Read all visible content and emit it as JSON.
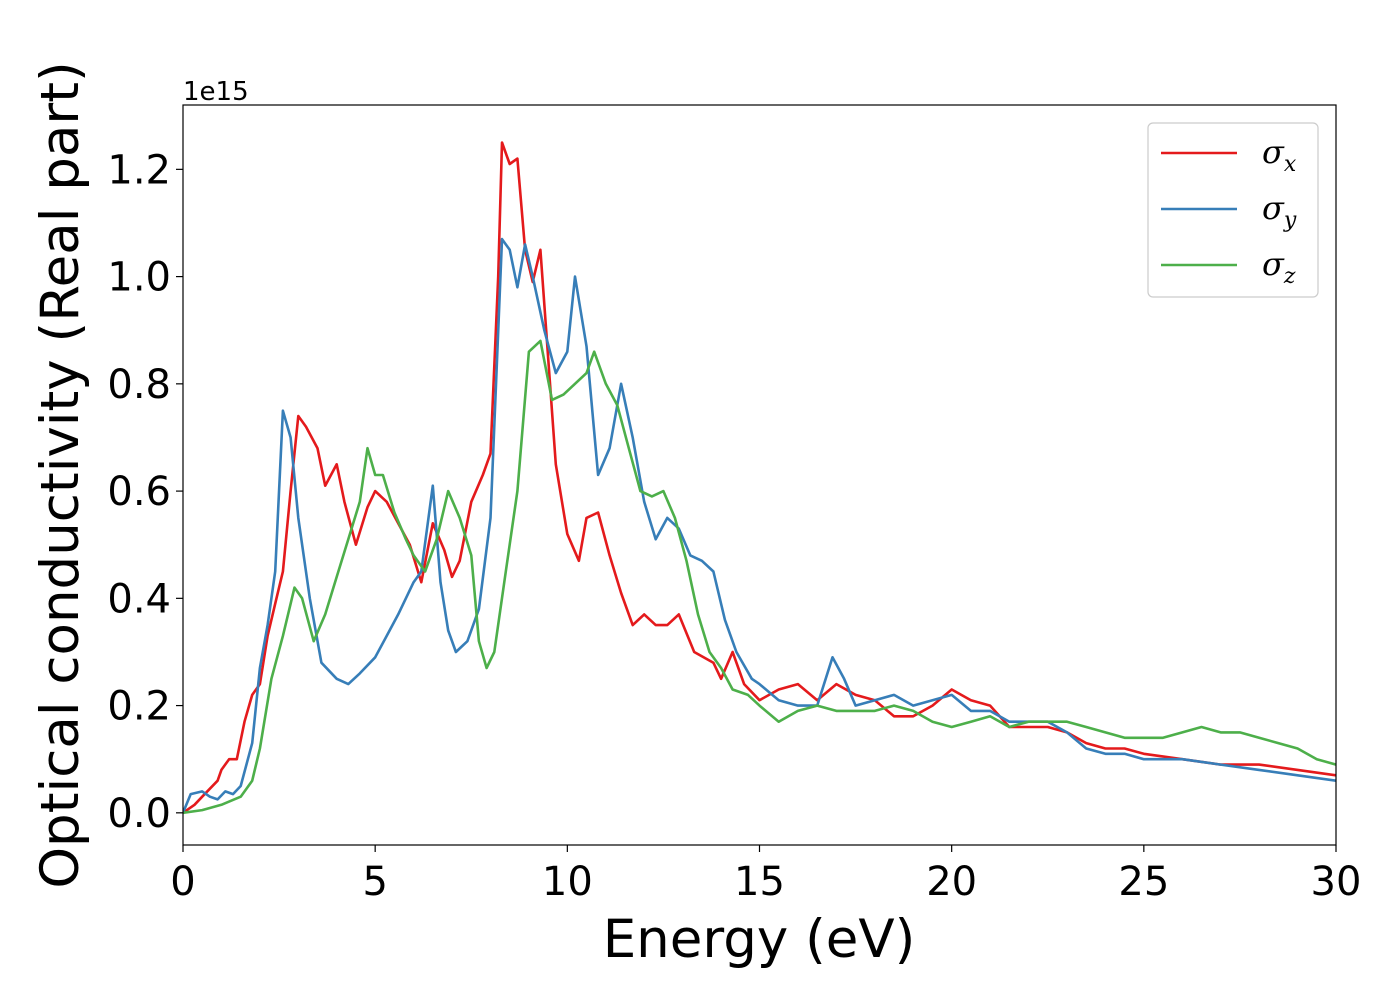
{
  "chart_data": {
    "type": "line",
    "xlabel": "Energy (eV)",
    "ylabel": "Optical conductivity (Real part)",
    "y_offset_label": "1e15",
    "xlim": [
      0,
      30
    ],
    "ylim": [
      -0.06,
      1.32
    ],
    "x_ticks": [
      0,
      5,
      10,
      15,
      20,
      25,
      30
    ],
    "x_tick_labels": [
      "0",
      "5",
      "10",
      "15",
      "20",
      "25",
      "30"
    ],
    "y_ticks": [
      0.0,
      0.2,
      0.4,
      0.6,
      0.8,
      1.0,
      1.2
    ],
    "y_tick_labels": [
      "0.0",
      "0.2",
      "0.4",
      "0.6",
      "0.8",
      "1.0",
      "1.2"
    ],
    "grid": false,
    "legend_position": "top-right",
    "series": [
      {
        "name": "σx",
        "legend_symbol": "σ",
        "legend_subscript": "x",
        "color": "#e41a1c",
        "points": [
          [
            0,
            0.0
          ],
          [
            0.3,
            0.015
          ],
          [
            0.5,
            0.03
          ],
          [
            0.7,
            0.045
          ],
          [
            0.9,
            0.06
          ],
          [
            1.0,
            0.08
          ],
          [
            1.2,
            0.1
          ],
          [
            1.4,
            0.1
          ],
          [
            1.6,
            0.17
          ],
          [
            1.8,
            0.22
          ],
          [
            2.0,
            0.24
          ],
          [
            2.2,
            0.33
          ],
          [
            2.4,
            0.39
          ],
          [
            2.6,
            0.45
          ],
          [
            2.8,
            0.6
          ],
          [
            3.0,
            0.74
          ],
          [
            3.2,
            0.72
          ],
          [
            3.5,
            0.68
          ],
          [
            3.7,
            0.61
          ],
          [
            4.0,
            0.65
          ],
          [
            4.2,
            0.58
          ],
          [
            4.5,
            0.5
          ],
          [
            4.8,
            0.57
          ],
          [
            5.0,
            0.6
          ],
          [
            5.3,
            0.58
          ],
          [
            5.6,
            0.54
          ],
          [
            5.9,
            0.5
          ],
          [
            6.2,
            0.43
          ],
          [
            6.5,
            0.54
          ],
          [
            6.8,
            0.49
          ],
          [
            7.0,
            0.44
          ],
          [
            7.2,
            0.47
          ],
          [
            7.5,
            0.58
          ],
          [
            7.8,
            0.63
          ],
          [
            8.0,
            0.67
          ],
          [
            8.2,
            1.0
          ],
          [
            8.3,
            1.25
          ],
          [
            8.5,
            1.21
          ],
          [
            8.7,
            1.22
          ],
          [
            8.9,
            1.05
          ],
          [
            9.1,
            0.99
          ],
          [
            9.3,
            1.05
          ],
          [
            9.5,
            0.85
          ],
          [
            9.7,
            0.65
          ],
          [
            10.0,
            0.52
          ],
          [
            10.3,
            0.47
          ],
          [
            10.5,
            0.55
          ],
          [
            10.8,
            0.56
          ],
          [
            11.1,
            0.48
          ],
          [
            11.4,
            0.41
          ],
          [
            11.7,
            0.35
          ],
          [
            12.0,
            0.37
          ],
          [
            12.3,
            0.35
          ],
          [
            12.6,
            0.35
          ],
          [
            12.9,
            0.37
          ],
          [
            13.3,
            0.3
          ],
          [
            13.8,
            0.28
          ],
          [
            14.0,
            0.25
          ],
          [
            14.3,
            0.3
          ],
          [
            14.6,
            0.24
          ],
          [
            15.0,
            0.21
          ],
          [
            15.5,
            0.23
          ],
          [
            16.0,
            0.24
          ],
          [
            16.5,
            0.21
          ],
          [
            17.0,
            0.24
          ],
          [
            17.5,
            0.22
          ],
          [
            18.0,
            0.21
          ],
          [
            18.5,
            0.18
          ],
          [
            19.0,
            0.18
          ],
          [
            19.5,
            0.2
          ],
          [
            20.0,
            0.23
          ],
          [
            20.5,
            0.21
          ],
          [
            21.0,
            0.2
          ],
          [
            21.5,
            0.16
          ],
          [
            22.0,
            0.16
          ],
          [
            22.5,
            0.16
          ],
          [
            23.0,
            0.15
          ],
          [
            23.5,
            0.13
          ],
          [
            24.0,
            0.12
          ],
          [
            24.5,
            0.12
          ],
          [
            25.0,
            0.11
          ],
          [
            26.0,
            0.1
          ],
          [
            27.0,
            0.09
          ],
          [
            28.0,
            0.09
          ],
          [
            29.0,
            0.08
          ],
          [
            30.0,
            0.07
          ]
        ]
      },
      {
        "name": "σy",
        "legend_symbol": "σ",
        "legend_subscript": "y",
        "color": "#377eb8",
        "points": [
          [
            0,
            0.0
          ],
          [
            0.2,
            0.035
          ],
          [
            0.5,
            0.04
          ],
          [
            0.7,
            0.03
          ],
          [
            0.9,
            0.025
          ],
          [
            1.1,
            0.04
          ],
          [
            1.3,
            0.035
          ],
          [
            1.5,
            0.05
          ],
          [
            1.8,
            0.13
          ],
          [
            2.0,
            0.27
          ],
          [
            2.2,
            0.35
          ],
          [
            2.4,
            0.45
          ],
          [
            2.6,
            0.75
          ],
          [
            2.8,
            0.7
          ],
          [
            3.0,
            0.55
          ],
          [
            3.3,
            0.4
          ],
          [
            3.6,
            0.28
          ],
          [
            4.0,
            0.25
          ],
          [
            4.3,
            0.24
          ],
          [
            4.6,
            0.26
          ],
          [
            5.0,
            0.29
          ],
          [
            5.3,
            0.33
          ],
          [
            5.6,
            0.37
          ],
          [
            6.0,
            0.43
          ],
          [
            6.2,
            0.45
          ],
          [
            6.5,
            0.61
          ],
          [
            6.7,
            0.43
          ],
          [
            6.9,
            0.34
          ],
          [
            7.1,
            0.3
          ],
          [
            7.4,
            0.32
          ],
          [
            7.7,
            0.38
          ],
          [
            8.0,
            0.55
          ],
          [
            8.3,
            1.07
          ],
          [
            8.5,
            1.05
          ],
          [
            8.7,
            0.98
          ],
          [
            8.9,
            1.06
          ],
          [
            9.1,
            1.0
          ],
          [
            9.4,
            0.9
          ],
          [
            9.7,
            0.82
          ],
          [
            10.0,
            0.86
          ],
          [
            10.2,
            1.0
          ],
          [
            10.5,
            0.87
          ],
          [
            10.8,
            0.63
          ],
          [
            11.1,
            0.68
          ],
          [
            11.4,
            0.8
          ],
          [
            11.7,
            0.7
          ],
          [
            12.0,
            0.58
          ],
          [
            12.3,
            0.51
          ],
          [
            12.6,
            0.55
          ],
          [
            12.9,
            0.53
          ],
          [
            13.2,
            0.48
          ],
          [
            13.5,
            0.47
          ],
          [
            13.8,
            0.45
          ],
          [
            14.1,
            0.36
          ],
          [
            14.4,
            0.3
          ],
          [
            14.8,
            0.25
          ],
          [
            15.0,
            0.24
          ],
          [
            15.5,
            0.21
          ],
          [
            16.0,
            0.2
          ],
          [
            16.5,
            0.2
          ],
          [
            16.9,
            0.29
          ],
          [
            17.2,
            0.25
          ],
          [
            17.5,
            0.2
          ],
          [
            18.0,
            0.21
          ],
          [
            18.5,
            0.22
          ],
          [
            19.0,
            0.2
          ],
          [
            19.5,
            0.21
          ],
          [
            20.0,
            0.22
          ],
          [
            20.5,
            0.19
          ],
          [
            21.0,
            0.19
          ],
          [
            21.5,
            0.17
          ],
          [
            22.0,
            0.17
          ],
          [
            22.5,
            0.17
          ],
          [
            23.0,
            0.15
          ],
          [
            23.5,
            0.12
          ],
          [
            24.0,
            0.11
          ],
          [
            24.5,
            0.11
          ],
          [
            25.0,
            0.1
          ],
          [
            26.0,
            0.1
          ],
          [
            27.0,
            0.09
          ],
          [
            28.0,
            0.08
          ],
          [
            29.0,
            0.07
          ],
          [
            30.0,
            0.06
          ]
        ]
      },
      {
        "name": "σz",
        "legend_symbol": "σ",
        "legend_subscript": "z",
        "color": "#4daf4a",
        "points": [
          [
            0,
            0.0
          ],
          [
            0.5,
            0.005
          ],
          [
            1.0,
            0.015
          ],
          [
            1.5,
            0.03
          ],
          [
            1.8,
            0.06
          ],
          [
            2.0,
            0.12
          ],
          [
            2.3,
            0.25
          ],
          [
            2.6,
            0.33
          ],
          [
            2.9,
            0.42
          ],
          [
            3.1,
            0.4
          ],
          [
            3.4,
            0.32
          ],
          [
            3.7,
            0.37
          ],
          [
            4.0,
            0.44
          ],
          [
            4.3,
            0.51
          ],
          [
            4.6,
            0.58
          ],
          [
            4.8,
            0.68
          ],
          [
            5.0,
            0.63
          ],
          [
            5.2,
            0.63
          ],
          [
            5.5,
            0.56
          ],
          [
            5.8,
            0.51
          ],
          [
            6.0,
            0.48
          ],
          [
            6.3,
            0.45
          ],
          [
            6.6,
            0.51
          ],
          [
            6.9,
            0.6
          ],
          [
            7.2,
            0.55
          ],
          [
            7.5,
            0.48
          ],
          [
            7.7,
            0.32
          ],
          [
            7.9,
            0.27
          ],
          [
            8.1,
            0.3
          ],
          [
            8.4,
            0.45
          ],
          [
            8.7,
            0.6
          ],
          [
            9.0,
            0.86
          ],
          [
            9.3,
            0.88
          ],
          [
            9.6,
            0.77
          ],
          [
            9.9,
            0.78
          ],
          [
            10.2,
            0.8
          ],
          [
            10.5,
            0.82
          ],
          [
            10.7,
            0.86
          ],
          [
            11.0,
            0.8
          ],
          [
            11.3,
            0.76
          ],
          [
            11.6,
            0.68
          ],
          [
            11.9,
            0.6
          ],
          [
            12.2,
            0.59
          ],
          [
            12.5,
            0.6
          ],
          [
            12.8,
            0.55
          ],
          [
            13.1,
            0.47
          ],
          [
            13.4,
            0.37
          ],
          [
            13.7,
            0.3
          ],
          [
            14.0,
            0.27
          ],
          [
            14.3,
            0.23
          ],
          [
            14.7,
            0.22
          ],
          [
            15.0,
            0.2
          ],
          [
            15.5,
            0.17
          ],
          [
            16.0,
            0.19
          ],
          [
            16.5,
            0.2
          ],
          [
            17.0,
            0.19
          ],
          [
            17.5,
            0.19
          ],
          [
            18.0,
            0.19
          ],
          [
            18.5,
            0.2
          ],
          [
            19.0,
            0.19
          ],
          [
            19.5,
            0.17
          ],
          [
            20.0,
            0.16
          ],
          [
            20.5,
            0.17
          ],
          [
            21.0,
            0.18
          ],
          [
            21.5,
            0.16
          ],
          [
            22.0,
            0.17
          ],
          [
            22.5,
            0.17
          ],
          [
            23.0,
            0.17
          ],
          [
            23.5,
            0.16
          ],
          [
            24.0,
            0.15
          ],
          [
            24.5,
            0.14
          ],
          [
            25.0,
            0.14
          ],
          [
            25.5,
            0.14
          ],
          [
            26.0,
            0.15
          ],
          [
            26.5,
            0.16
          ],
          [
            27.0,
            0.15
          ],
          [
            27.5,
            0.15
          ],
          [
            28.0,
            0.14
          ],
          [
            28.5,
            0.13
          ],
          [
            29.0,
            0.12
          ],
          [
            29.5,
            0.1
          ],
          [
            30.0,
            0.09
          ]
        ]
      }
    ]
  }
}
